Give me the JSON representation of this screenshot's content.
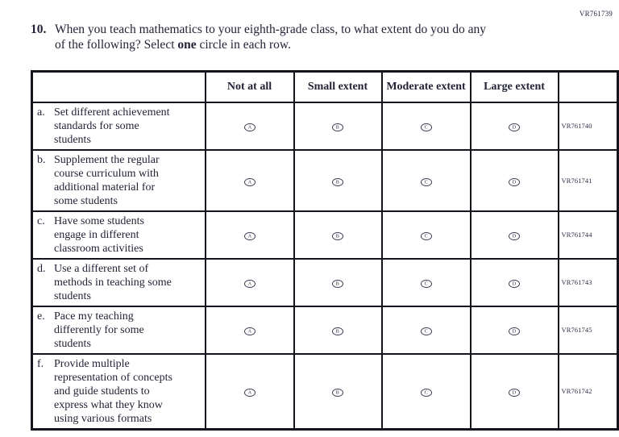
{
  "page_code": "VR761739",
  "question": {
    "number": "10.",
    "line1": "When you teach mathematics to your eighth-grade class, to what extent do you do any",
    "line2_before_bold": "of the following? Select ",
    "line2_bold": "one",
    "line2_after_bold": " circle in each row."
  },
  "table": {
    "column_headers": [
      "Not at all",
      "Small extent",
      "Moderate extent",
      "Large extent"
    ],
    "option_letters": [
      "A",
      "B",
      "C",
      "D"
    ],
    "rows": [
      {
        "item_letter": "a.",
        "lines": [
          "Set different achievement",
          "standards for some",
          "students"
        ],
        "code": "VR761740"
      },
      {
        "item_letter": "b.",
        "lines": [
          "Supplement the regular",
          "course curriculum with",
          "additional material for",
          "some students"
        ],
        "code": "VR761741"
      },
      {
        "item_letter": "c.",
        "lines": [
          "Have some students",
          "engage in different",
          "classroom activities"
        ],
        "code": "VR761744"
      },
      {
        "item_letter": "d.",
        "lines": [
          "Use a different set of",
          "methods in teaching some",
          "students"
        ],
        "code": "VR761743"
      },
      {
        "item_letter": "e.",
        "lines": [
          "Pace my teaching",
          "differently for some",
          "students"
        ],
        "code": "VR761745"
      },
      {
        "item_letter": "f.",
        "lines": [
          "Provide multiple",
          "representation of concepts",
          "and guide students to",
          "express what they know",
          "using various formats"
        ],
        "code": "VR761742"
      }
    ]
  },
  "colors": {
    "ink": "#232337",
    "border": "#14141c"
  }
}
